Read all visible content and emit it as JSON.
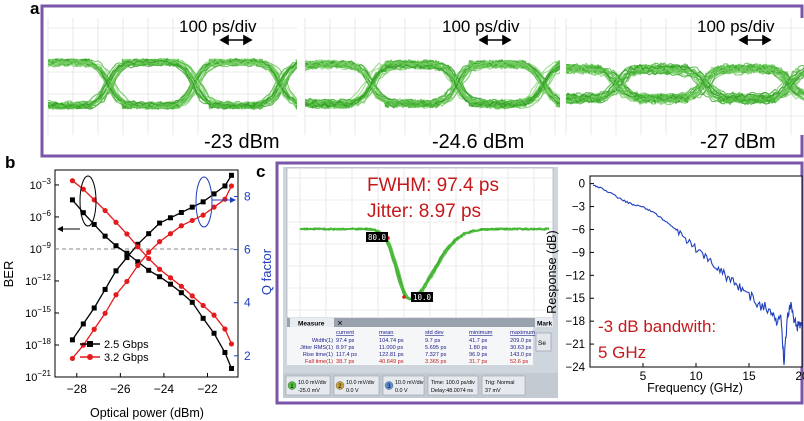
{
  "panel_labels": {
    "a": "a",
    "b": "b",
    "c": "c"
  },
  "eyes": [
    {
      "time_scale": "100 ps/div",
      "power": "-23 dBm"
    },
    {
      "time_scale": "100 ps/div",
      "power": "-24.6 dBm"
    },
    {
      "time_scale": "100 ps/div",
      "power": "-27 dBm"
    }
  ],
  "scope": {
    "fwhm": "FWHM: 97.4 ps",
    "jitter": "Jitter: 8.97 ps",
    "marker_top": "80.0 %",
    "marker_bottom": "10.0 %",
    "measure_tab": "Measure",
    "mark_tab": "Mark",
    "setup_btn": "Se",
    "table": {
      "headers": [
        "current",
        "mean",
        "std dev",
        "minimum",
        "maximum"
      ],
      "rows": [
        {
          "label": "Width(1)",
          "values": [
            "97.4 ps",
            "104.74 ps",
            "9.7 ps",
            "41.7 ps",
            "209.0 ps"
          ]
        },
        {
          "label": "Jitter RMS(1)",
          "values": [
            "8.97 ps",
            "11.000 ps",
            "5.695 ps",
            "1.80 ps",
            "30.63 ps"
          ]
        },
        {
          "label": "Rise time(1)",
          "values": [
            "117.4 ps",
            "122.81 ps",
            "7.327 ps",
            "96.9 ps",
            "143.0 ps"
          ]
        },
        {
          "label": "Fall time(1)",
          "values": [
            "38.7 ps",
            "40.649 ps",
            "3.365 ps",
            "31.7 ps",
            "52.6 ps"
          ]
        }
      ]
    },
    "status": [
      {
        "num": "1",
        "l1": "10.0 mV/div",
        "l2": "-25.0 mV"
      },
      {
        "num": "2",
        "l1": "10.0 mV/div",
        "l2": "0.0 V"
      },
      {
        "num": "3",
        "l1": "10.0 mV/div",
        "l2": "0.0 V"
      },
      {
        "num": "",
        "l1": "Time: 100.0 ps/div",
        "l2": "Delay:48.0074 ns"
      },
      {
        "num": "",
        "l1": "Trig: Normal",
        "l2": "37 mV"
      }
    ]
  },
  "chart_data": [
    {
      "type": "line",
      "xlabel": "Optical power (dBm)",
      "ylabel": "BER",
      "y2label": "Q factor",
      "xlim": [
        -29,
        -20.6
      ],
      "ylim_log10": [
        -21,
        -1.6
      ],
      "y2lim": [
        1.2,
        9.0
      ],
      "yscale": "log",
      "xticks": [
        -28,
        -26,
        -24,
        -22
      ],
      "yticks": [
        "10^-3",
        "10^-6",
        "10^-9",
        "10^-12",
        "10^-15",
        "10^-18",
        "10^-21"
      ],
      "y2ticks": [
        2,
        4,
        6,
        8
      ],
      "reference_line_ber_log10": -9,
      "legend_position": "bottom-left",
      "series": [
        {
          "name": "2.5 Gbps",
          "color": "#000000",
          "axis": "BER",
          "x": [
            -28.2,
            -27.7,
            -27.2,
            -26.7,
            -26.2,
            -25.7,
            -25.2,
            -24.7,
            -24.2,
            -23.7,
            -23.2,
            -22.7,
            -22.2,
            -21.7,
            -21.2,
            -20.9
          ],
          "log10_ber": [
            -4.4,
            -5.6,
            -6.7,
            -7.8,
            -8.7,
            -9.4,
            -10.2,
            -11.0,
            -11.6,
            -12.3,
            -13.1,
            -14.0,
            -15.5,
            -16.9,
            -18.7,
            -20.2
          ]
        },
        {
          "name": "2.5 Gbps",
          "color": "#000000",
          "axis": "Q",
          "x": [
            -28.2,
            -27.7,
            -27.2,
            -26.7,
            -26.2,
            -25.7,
            -25.2,
            -24.7,
            -24.2,
            -23.7,
            -23.2,
            -22.7,
            -22.2,
            -21.7,
            -21.2,
            -20.9
          ],
          "q": [
            2.6,
            3.2,
            3.8,
            4.5,
            5.2,
            5.7,
            6.2,
            6.6,
            7.0,
            7.2,
            7.4,
            7.6,
            7.8,
            8.1,
            8.4,
            8.8
          ]
        },
        {
          "name": "3.2 Gbps",
          "color": "#e41a1c",
          "axis": "BER",
          "x": [
            -28.2,
            -27.7,
            -27.2,
            -26.7,
            -26.2,
            -25.7,
            -25.2,
            -24.7,
            -24.2,
            -23.7,
            -23.2,
            -22.7,
            -22.2,
            -21.7,
            -21.2,
            -20.9
          ],
          "log10_ber": [
            -2.6,
            -3.4,
            -4.4,
            -5.4,
            -6.5,
            -7.6,
            -8.8,
            -9.9,
            -10.9,
            -11.7,
            -12.5,
            -13.4,
            -14.3,
            -15.2,
            -16.5,
            -17.9
          ]
        },
        {
          "name": "3.2 Gbps",
          "color": "#e41a1c",
          "axis": "Q",
          "x": [
            -28.2,
            -27.7,
            -27.2,
            -26.7,
            -26.2,
            -25.7,
            -25.2,
            -24.7,
            -24.2,
            -23.7,
            -23.2,
            -22.7,
            -22.2,
            -21.7,
            -21.2,
            -20.9
          ],
          "q": [
            1.9,
            2.4,
            3.0,
            3.6,
            4.3,
            4.8,
            5.4,
            5.9,
            6.3,
            6.6,
            6.9,
            7.1,
            7.3,
            7.6,
            7.9,
            8.4
          ]
        }
      ]
    },
    {
      "type": "line",
      "xlabel": "Frequency (GHz)",
      "ylabel": "Response (dB)",
      "annotation_line1": "-3 dB bandwith:",
      "annotation_line2": "5 GHz",
      "xlim": [
        0,
        20
      ],
      "ylim": [
        -24,
        1
      ],
      "xticks": [
        5,
        10,
        15,
        20
      ],
      "yticks": [
        0,
        -3,
        -6,
        -9,
        -12,
        -15,
        -18,
        -21,
        -24
      ],
      "series": [
        {
          "name": "",
          "color": "#1f3fbf",
          "x": [
            0.3,
            1,
            2,
            3,
            4,
            5,
            6,
            7,
            8,
            9,
            10,
            11,
            12,
            13,
            14,
            15,
            16,
            17,
            17.6,
            18,
            18.3,
            18.6,
            19,
            19.5,
            20
          ],
          "y": [
            -0.2,
            -0.6,
            -1.3,
            -2.1,
            -2.7,
            -3.0,
            -3.8,
            -4.8,
            -5.9,
            -7.2,
            -8.5,
            -9.6,
            -11.0,
            -12.3,
            -13.4,
            -14.5,
            -15.9,
            -16.4,
            -18.5,
            -17.0,
            -23.5,
            -17.5,
            -16.0,
            -19.0,
            -18.0
          ]
        }
      ]
    }
  ]
}
